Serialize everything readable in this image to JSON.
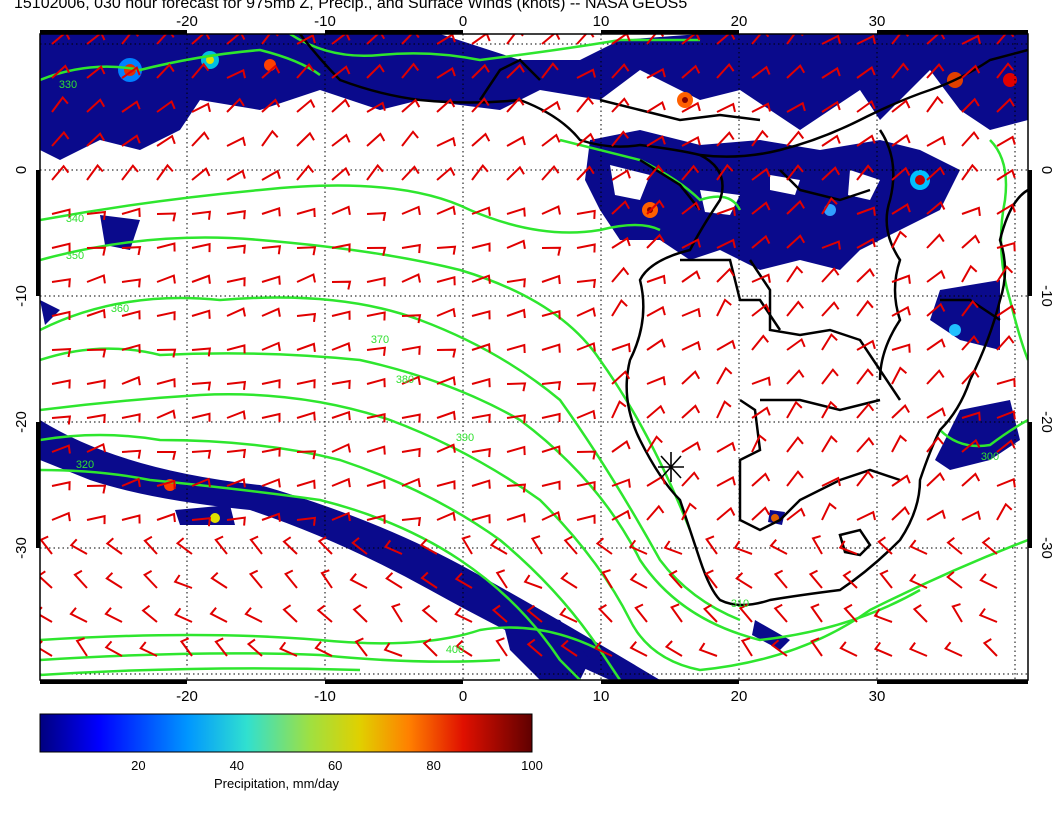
{
  "title": "15102006, 030 hour forecast for 975mb Z, Precip., and Surface Winds (knots) -- NASA GEOS5",
  "map": {
    "lon_ticks": [
      "-20",
      "-10",
      "0",
      "10",
      "20",
      "30"
    ],
    "lat_ticks": [
      "0",
      "-10",
      "-20",
      "-30"
    ],
    "contour_labels": [
      "330",
      "340",
      "350",
      "360",
      "370",
      "380",
      "390",
      "400",
      "320",
      "310",
      "300"
    ],
    "colors": {
      "precip_dark": "#0a0a8c",
      "contour": "#2ee62e",
      "wind_barb": "#e00000",
      "coast": "#000000"
    },
    "marker_icon": "station-star-icon"
  },
  "colorbar": {
    "label": "Precipitation, mm/day",
    "ticks": [
      "20",
      "40",
      "60",
      "80",
      "100"
    ],
    "range": [
      0,
      100
    ],
    "colormap": [
      "#00008f",
      "#0000ff",
      "#00b4ff",
      "#40e0d0",
      "#c8e000",
      "#ffb000",
      "#ff4000",
      "#c00000",
      "#600000"
    ]
  }
}
